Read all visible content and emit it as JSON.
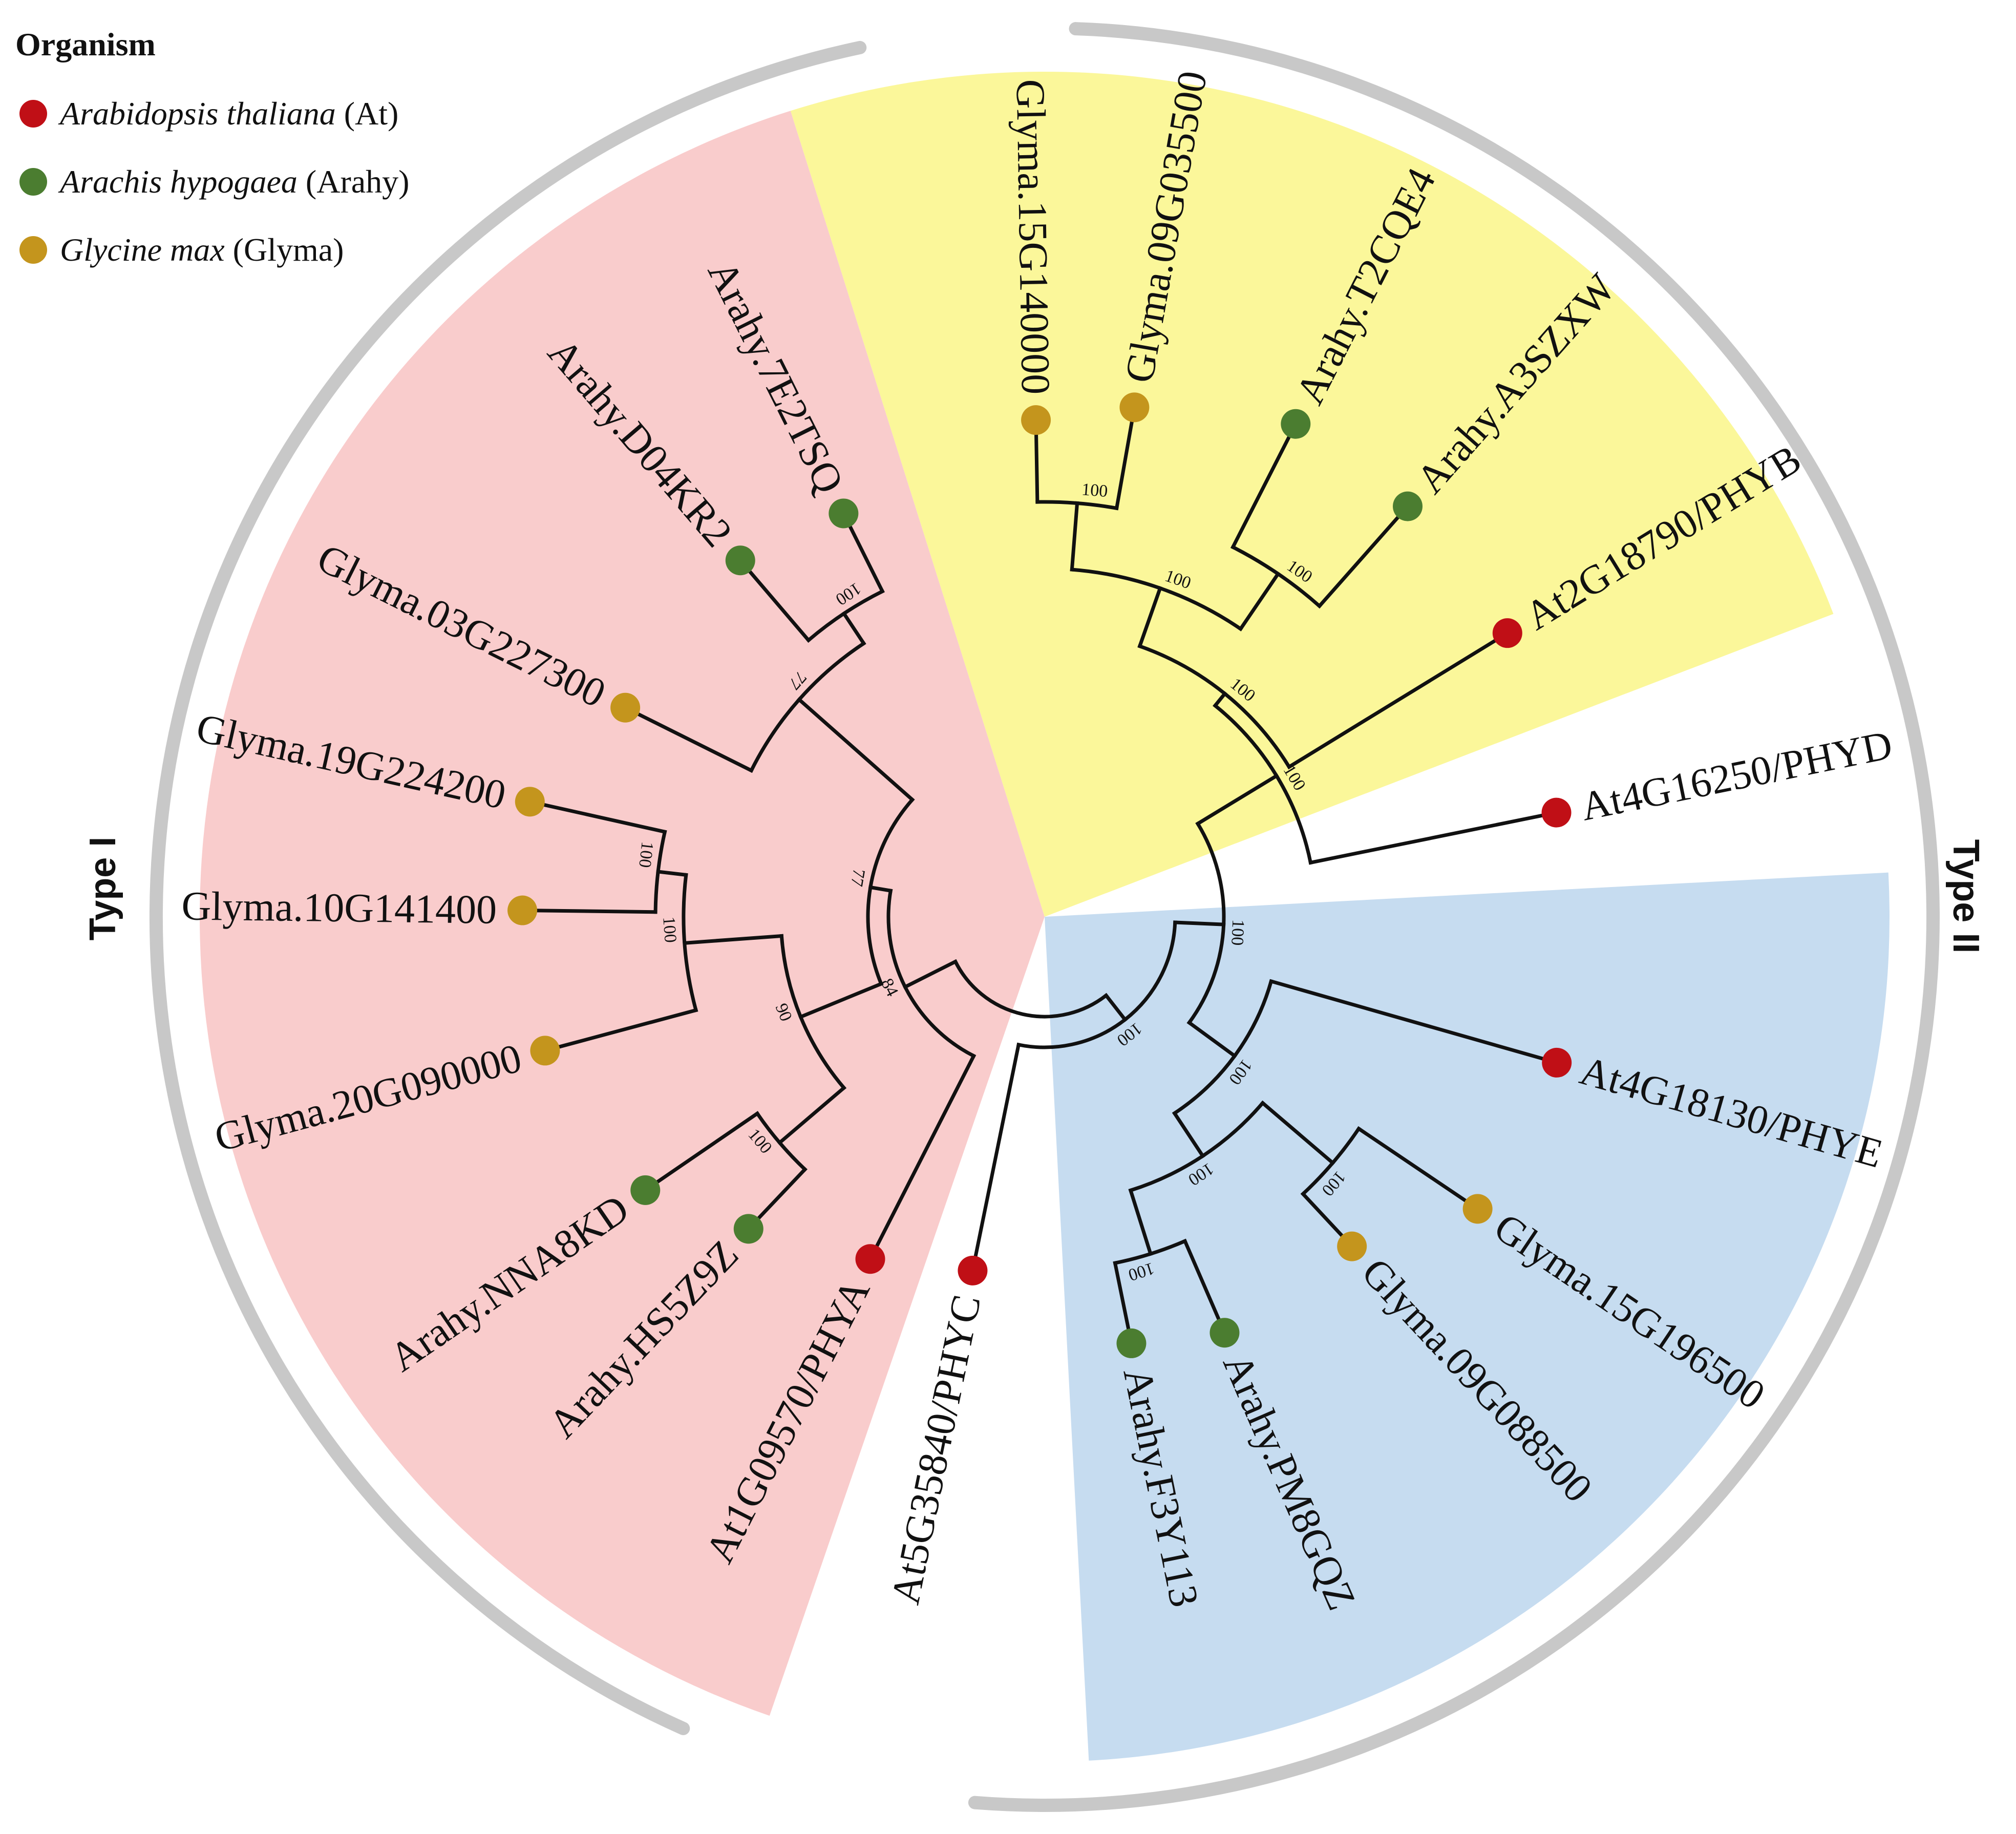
{
  "legend": {
    "title": "Organism",
    "items": [
      {
        "name": "Arabidopsis thaliana",
        "code": "(At)",
        "color": "#c00f16"
      },
      {
        "name": "Arachis hypogaea",
        "code": "(Arahy)",
        "color": "#4b7d30"
      },
      {
        "name": "Glycine max",
        "code": "(Glyma)",
        "color": "#c4951d"
      }
    ]
  },
  "groups": {
    "type1": "Type I",
    "type2": "Type II"
  },
  "colors": {
    "clade_phya": "#f9cccc",
    "clade_phyb": "#fbf79a",
    "clade_phye": "#c6dcf0",
    "arc": "#c8c8c8",
    "branch": "#111111"
  },
  "leaves": [
    {
      "id": "l1",
      "label": "At5G35840/PHYC",
      "org": "At"
    },
    {
      "id": "l2",
      "label": "At1G09570/PHYA",
      "org": "At"
    },
    {
      "id": "l3",
      "label": "Arahy.HS5Z9Z",
      "org": "Arahy"
    },
    {
      "id": "l4",
      "label": "Arahy.NNA8KD",
      "org": "Arahy"
    },
    {
      "id": "l5",
      "label": "Glyma.20G090000",
      "org": "Glyma"
    },
    {
      "id": "l6",
      "label": "Glyma.10G141400",
      "org": "Glyma"
    },
    {
      "id": "l7",
      "label": "Glyma.19G224200",
      "org": "Glyma"
    },
    {
      "id": "l8",
      "label": "Glyma.03G227300",
      "org": "Glyma"
    },
    {
      "id": "l9",
      "label": "Arahy.D04KR2",
      "org": "Arahy"
    },
    {
      "id": "l10",
      "label": "Arahy.7E2TSQ",
      "org": "Arahy"
    },
    {
      "id": "l11",
      "label": "Glyma.15G140000",
      "org": "Glyma"
    },
    {
      "id": "l12",
      "label": "Glyma.09G035500",
      "org": "Glyma"
    },
    {
      "id": "l13",
      "label": "Arahy.T2CQE4",
      "org": "Arahy"
    },
    {
      "id": "l14",
      "label": "Arahy.A3SZXW",
      "org": "Arahy"
    },
    {
      "id": "l15",
      "label": "At2G18790/PHYB",
      "org": "At"
    },
    {
      "id": "l16",
      "label": "At4G16250/PHYD",
      "org": "At"
    },
    {
      "id": "l17",
      "label": "At4G18130/PHYE",
      "org": "At"
    },
    {
      "id": "l18",
      "label": "Glyma.15G196500",
      "org": "Glyma"
    },
    {
      "id": "l19",
      "label": "Glyma.09G088500",
      "org": "Glyma"
    },
    {
      "id": "l20",
      "label": "Arahy.PM8GQZ",
      "org": "Arahy"
    },
    {
      "id": "l21",
      "label": "Arahy.F3Y113",
      "org": "Arahy"
    }
  ],
  "supports": [
    {
      "node": "n_hs_nn",
      "value": "100"
    },
    {
      "node": "n_g10_g19",
      "value": "100"
    },
    {
      "node": "n_g20",
      "value": "100"
    },
    {
      "node": "n_arahy_grp",
      "value": "90"
    },
    {
      "node": "n_d04_7e2",
      "value": "100"
    },
    {
      "node": "n_g03",
      "value": "77"
    },
    {
      "node": "n_typeI",
      "value": "77"
    },
    {
      "node": "n_phya",
      "value": "84"
    },
    {
      "node": "n_g15_g09",
      "value": "100"
    },
    {
      "node": "n_t2_a3",
      "value": "100"
    },
    {
      "node": "n_legume_b",
      "value": "100"
    },
    {
      "node": "n_phyb_grp",
      "value": "100"
    },
    {
      "node": "n_b_d",
      "value": "100"
    },
    {
      "node": "n_typeII",
      "value": "100"
    },
    {
      "node": "n_g15b_g09b",
      "value": "100"
    },
    {
      "node": "n_pm_f3",
      "value": "100"
    },
    {
      "node": "n_legume_e",
      "value": "100"
    },
    {
      "node": "n_phye_grp",
      "value": "100"
    },
    {
      "node": "n_phye_c",
      "value": "100"
    }
  ]
}
